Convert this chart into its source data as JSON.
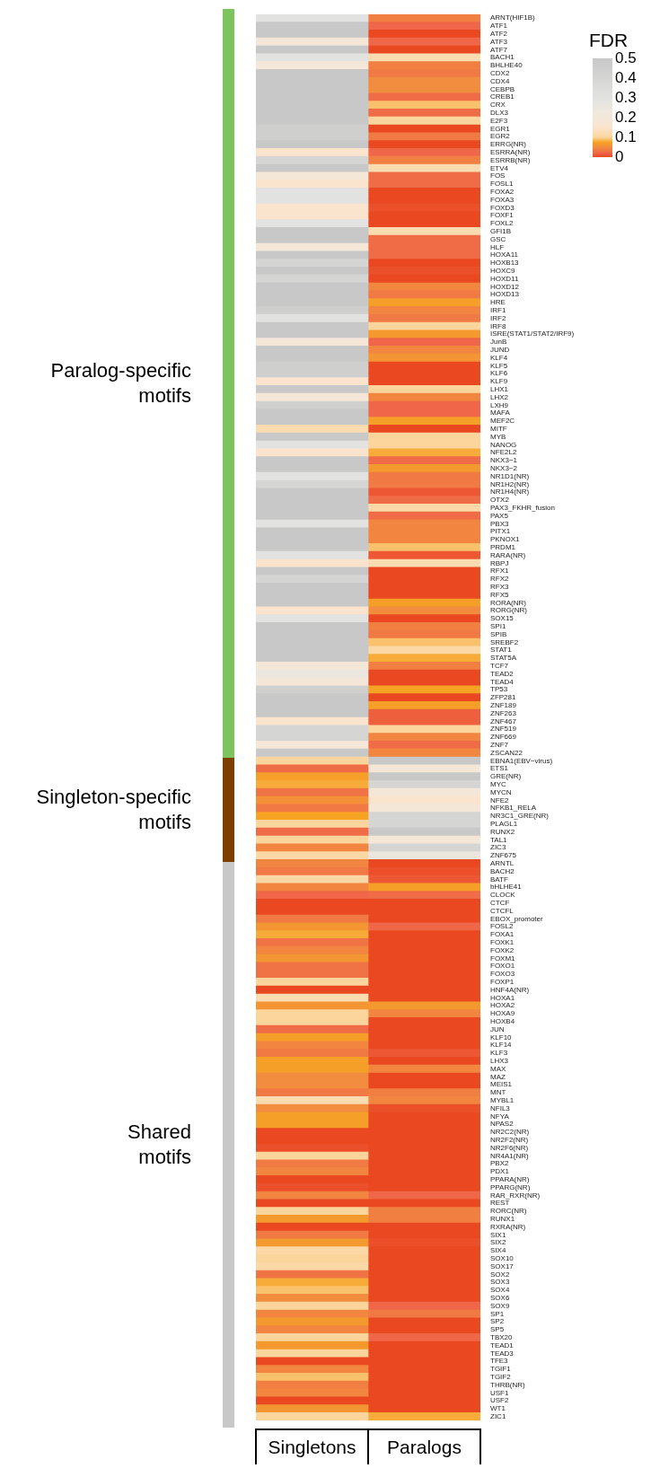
{
  "chart_data": {
    "type": "heatmap",
    "clabel": "FDR",
    "categories": [
      "Singletons",
      "Paralogs"
    ],
    "y_categories": [
      "ARNT(HIF1B)",
      "ATF1",
      "ATF2",
      "ATF3",
      "ATF7",
      "BACH1",
      "BHLHE40",
      "CDX2",
      "CDX4",
      "CEBPB",
      "CREB1",
      "CRX",
      "DLX3",
      "E2F3",
      "EGR1",
      "EGR2",
      "ERRG(NR)",
      "ESRRA(NR)",
      "ESRRB(NR)",
      "ETV4",
      "FOS",
      "FOSL1",
      "FOXA2",
      "FOXA3",
      "FOXD3",
      "FOXF1",
      "FOXL2",
      "GFI1B",
      "GSC",
      "HLF",
      "HOXA11",
      "HOXB13",
      "HOXC9",
      "HOXD11",
      "HOXD12",
      "HOXD13",
      "HRE",
      "IRF1",
      "IRF2",
      "IRF8",
      "ISRE(STAT1/STAT2/IRF9)",
      "JunB",
      "JUND",
      "KLF4",
      "KLF5",
      "KLF6",
      "KLF9",
      "LHX1",
      "LHX2",
      "LXH9",
      "MAFA",
      "MEF2C",
      "MITF",
      "MYB",
      "NANOG",
      "NFE2L2",
      "NKX3−1",
      "NKX3−2",
      "NR1D1(NR)",
      "NR1H2(NR)",
      "NR1H4(NR)",
      "OTX2",
      "PAX3_FKHR_fusion",
      "PAX5",
      "PBX3",
      "PITX1",
      "PKNOX1",
      "PRDM1",
      "RARA(NR)",
      "RBPJ",
      "RFX1",
      "RFX2",
      "RFX3",
      "RFX5",
      "RORA(NR)",
      "RORG(NR)",
      "SOX15",
      "SPI1",
      "SPIB",
      "SREBF2",
      "STAT1",
      "STAT5A",
      "TCF7",
      "TEAD2",
      "TEAD4",
      "TP53",
      "ZFP281",
      "ZNF189",
      "ZNF263",
      "ZNF467",
      "ZNF519",
      "ZNF669",
      "ZNF7",
      "ZSCAN22",
      "EBNA1(EBV−virus)",
      "ETS1",
      "GRE(NR)",
      "MYC",
      "MYCN",
      "NFE2",
      "NFKB1_RELA",
      "NR3C1_GRE(NR)",
      "PLAGL1",
      "RUNX2",
      "TAL1",
      "ZIC3",
      "ZNF675",
      "ARNTL",
      "BACH2",
      "BATF",
      "bHLHE41",
      "CLOCK",
      "CTCF",
      "CTCFL",
      "EBOX_promoter",
      "FOSL2",
      "FOXA1",
      "FOXK1",
      "FOXK2",
      "FOXM1",
      "FOXO1",
      "FOXO3",
      "FOXP1",
      "HNF4A(NR)",
      "HOXA1",
      "HOXA2",
      "HOXA9",
      "HOXB4",
      "JUN",
      "KLF10",
      "KLF14",
      "KLF3",
      "LHX3",
      "MAX",
      "MAZ",
      "MEIS1",
      "MNT",
      "MYBL1",
      "NFIL3",
      "NFYA",
      "NPAS2",
      "NR2C2(NR)",
      "NR2F2(NR)",
      "NR2F6(NR)",
      "NR4A1(NR)",
      "PBX2",
      "PDX1",
      "PPARA(NR)",
      "PPARG(NR)",
      "RAR_RXR(NR)",
      "REST",
      "RORC(NR)",
      "RUNX1",
      "RXRA(NR)",
      "SIX1",
      "SIX2",
      "SIX4",
      "SOX10",
      "SOX17",
      "SOX2",
      "SOX3",
      "SOX4",
      "SOX6",
      "SOX9",
      "SP1",
      "SP2",
      "SP5",
      "TBX20",
      "TEAD1",
      "TEAD3",
      "TFE3",
      "TGIF1",
      "TGIF2",
      "THRB(NR)",
      "USF1",
      "USF2",
      "WT1",
      "ZIC1"
    ],
    "cells": [
      [
        0.3,
        0.04
      ],
      [
        0.5,
        0.02
      ],
      [
        0.5,
        0
      ],
      [
        0.2,
        0.02
      ],
      [
        0.5,
        0
      ],
      [
        0.3,
        0.12
      ],
      [
        0.2,
        0.04
      ],
      [
        0.5,
        0.035
      ],
      [
        0.5,
        0.05
      ],
      [
        0.5,
        0.05
      ],
      [
        0.5,
        0.025
      ],
      [
        0.5,
        0.09
      ],
      [
        0.5,
        0.025
      ],
      [
        0.5,
        0.1
      ],
      [
        0.45,
        0
      ],
      [
        0.45,
        0.035
      ],
      [
        0.5,
        0
      ],
      [
        0.15,
        0.02
      ],
      [
        0.4,
        0.04
      ],
      [
        0.5,
        0.12
      ],
      [
        0.2,
        0.025
      ],
      [
        0.15,
        0.025
      ],
      [
        0.3,
        0
      ],
      [
        0.3,
        0
      ],
      [
        0.15,
        0.005
      ],
      [
        0.15,
        0
      ],
      [
        0.3,
        0
      ],
      [
        0.5,
        0.12
      ],
      [
        0.5,
        0.025
      ],
      [
        0.2,
        0.025
      ],
      [
        0.5,
        0.025
      ],
      [
        0.4,
        0
      ],
      [
        0.5,
        0.005
      ],
      [
        0.4,
        0
      ],
      [
        0.5,
        0.045
      ],
      [
        0.5,
        0.035
      ],
      [
        0.5,
        0.07
      ],
      [
        0.45,
        0.045
      ],
      [
        0.3,
        0.035
      ],
      [
        0.5,
        0.1
      ],
      [
        0.5,
        0.065
      ],
      [
        0.2,
        0.02
      ],
      [
        0.5,
        0.045
      ],
      [
        0.5,
        0.06
      ],
      [
        0.45,
        0
      ],
      [
        0.45,
        0
      ],
      [
        0.15,
        0
      ],
      [
        0.5,
        0.1
      ],
      [
        0.2,
        0.045
      ],
      [
        0.45,
        0.02
      ],
      [
        0.5,
        0.02
      ],
      [
        0.5,
        0.07
      ],
      [
        0.12,
        0
      ],
      [
        0.5,
        0.1
      ],
      [
        0.3,
        0.1
      ],
      [
        0.15,
        0.08
      ],
      [
        0.5,
        0.025
      ],
      [
        0.5,
        0.065
      ],
      [
        0.3,
        0.035
      ],
      [
        0.4,
        0.035
      ],
      [
        0.5,
        0.01
      ],
      [
        0.5,
        0.025
      ],
      [
        0.5,
        0.11
      ],
      [
        0.5,
        0.025
      ],
      [
        0.3,
        0.045
      ],
      [
        0.5,
        0.045
      ],
      [
        0.5,
        0.045
      ],
      [
        0.5,
        0.09
      ],
      [
        0.3,
        0.01
      ],
      [
        0.15,
        0.12
      ],
      [
        0.5,
        0
      ],
      [
        0.4,
        0
      ],
      [
        0.5,
        0
      ],
      [
        0.5,
        0
      ],
      [
        0.5,
        0.07
      ],
      [
        0.15,
        0.05
      ],
      [
        0.3,
        0
      ],
      [
        0.5,
        0.04
      ],
      [
        0.5,
        0.035
      ],
      [
        0.5,
        0.09
      ],
      [
        0.5,
        0.11
      ],
      [
        0.5,
        0.08
      ],
      [
        0.2,
        0.04
      ],
      [
        0.25,
        0
      ],
      [
        0.2,
        0
      ],
      [
        0.45,
        0.075
      ],
      [
        0.5,
        0
      ],
      [
        0.5,
        0.07
      ],
      [
        0.5,
        0.015
      ],
      [
        0.15,
        0.015
      ],
      [
        0.4,
        0.1
      ],
      [
        0.4,
        0.045
      ],
      [
        0.2,
        0.025
      ],
      [
        0.5,
        0.045
      ],
      [
        0.1,
        0.5
      ],
      [
        0.025,
        0.2
      ],
      [
        0.07,
        0.5
      ],
      [
        0.08,
        0.4
      ],
      [
        0.03,
        0.2
      ],
      [
        0.055,
        0.15
      ],
      [
        0.035,
        0.2
      ],
      [
        0.075,
        0.4
      ],
      [
        0.1,
        0.4
      ],
      [
        0.025,
        0.5
      ],
      [
        0.1,
        0.2
      ],
      [
        0.045,
        0.4
      ],
      [
        0.11,
        0.25
      ],
      [
        0.045,
        0
      ],
      [
        0.035,
        0.005
      ],
      [
        0.11,
        0.01
      ],
      [
        0.045,
        0.07
      ],
      [
        0.02,
        0.025
      ],
      [
        0,
        0
      ],
      [
        0,
        0
      ],
      [
        0.035,
        0
      ],
      [
        0.06,
        0.02
      ],
      [
        0.08,
        0
      ],
      [
        0.03,
        0
      ],
      [
        0.045,
        0
      ],
      [
        0.06,
        0
      ],
      [
        0.03,
        0
      ],
      [
        0.03,
        0
      ],
      [
        0.1,
        0
      ],
      [
        0,
        0
      ],
      [
        0.12,
        0
      ],
      [
        0.06,
        0.065
      ],
      [
        0.1,
        0.045
      ],
      [
        0.1,
        0
      ],
      [
        0.025,
        0
      ],
      [
        0.07,
        0
      ],
      [
        0.045,
        0
      ],
      [
        0.035,
        0.01
      ],
      [
        0.07,
        0
      ],
      [
        0.07,
        0.045
      ],
      [
        0.05,
        0
      ],
      [
        0.05,
        0
      ],
      [
        0.035,
        0.04
      ],
      [
        0.12,
        0.045
      ],
      [
        0.05,
        0.005
      ],
      [
        0.07,
        0
      ],
      [
        0.07,
        0
      ],
      [
        0,
        0
      ],
      [
        0,
        0
      ],
      [
        0.005,
        0
      ],
      [
        0.1,
        0
      ],
      [
        0.035,
        0
      ],
      [
        0.045,
        0
      ],
      [
        0,
        0
      ],
      [
        0.005,
        0
      ],
      [
        0.045,
        0.02
      ],
      [
        0,
        0
      ],
      [
        0.1,
        0.04
      ],
      [
        0.065,
        0.04
      ],
      [
        0,
        0
      ],
      [
        0.035,
        0
      ],
      [
        0.065,
        0.005
      ],
      [
        0.11,
        0
      ],
      [
        0.1,
        0
      ],
      [
        0.11,
        0
      ],
      [
        0.03,
        0
      ],
      [
        0.08,
        0
      ],
      [
        0.09,
        0
      ],
      [
        0.05,
        0
      ],
      [
        0.1,
        0.02
      ],
      [
        0.045,
        0.035
      ],
      [
        0.065,
        0
      ],
      [
        0.045,
        0
      ],
      [
        0.1,
        0.02
      ],
      [
        0.065,
        0
      ],
      [
        0.1,
        0
      ],
      [
        0,
        0
      ],
      [
        0.045,
        0
      ],
      [
        0.09,
        0
      ],
      [
        0.04,
        0
      ],
      [
        0.045,
        0
      ],
      [
        0,
        0
      ],
      [
        0.06,
        0
      ],
      [
        0.1,
        0.08
      ]
    ],
    "clim": [
      0,
      0.5
    ],
    "cticks": [
      0,
      0.1,
      0.2,
      0.3,
      0.4,
      0.5
    ],
    "annotations": [
      "Paralog-specific motifs",
      "Singleton-specific motifs",
      "Shared motifs"
    ]
  }
}
